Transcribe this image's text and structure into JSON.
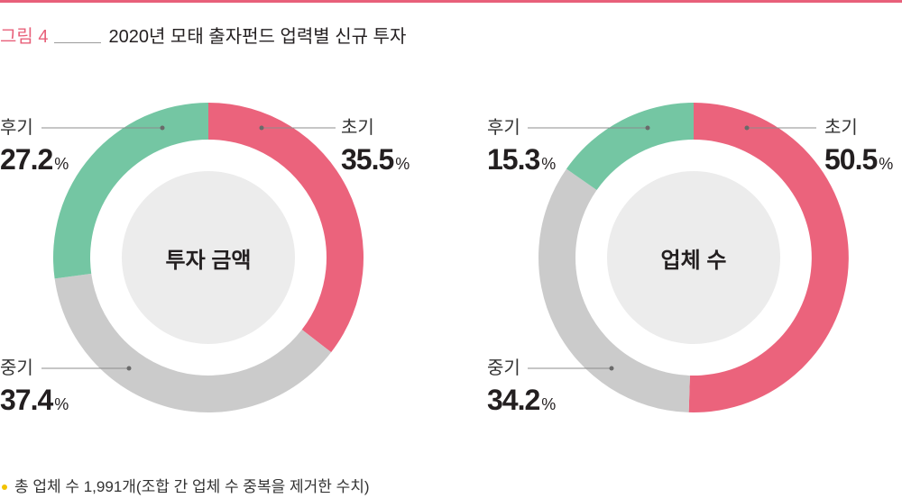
{
  "theme": {
    "accent": "#e8607a",
    "center_fill": "#ececec",
    "bullet": "#f2c200"
  },
  "header": {
    "figure_label": "그림 4",
    "title": "2020년 모태 출자펀드 업력별 신규 투자"
  },
  "chart_data": [
    {
      "type": "pie",
      "donut": true,
      "center_label": "투자 금액",
      "unit": "%",
      "slices": [
        {
          "name": "초기",
          "value": 35.5,
          "color": "#eb637c"
        },
        {
          "name": "중기",
          "value": 37.4,
          "color": "#cbcbcb"
        },
        {
          "name": "후기",
          "value": 27.2,
          "color": "#74c6a3"
        }
      ]
    },
    {
      "type": "pie",
      "donut": true,
      "center_label": "업체 수",
      "unit": "%",
      "slices": [
        {
          "name": "초기",
          "value": 50.5,
          "color": "#eb637c"
        },
        {
          "name": "중기",
          "value": 34.2,
          "color": "#cbcbcb"
        },
        {
          "name": "후기",
          "value": 15.3,
          "color": "#74c6a3"
        }
      ]
    }
  ],
  "footnote": {
    "text": "총 업체 수 1,991개(조합 간 업체 수 중복을 제거한 수치)"
  }
}
